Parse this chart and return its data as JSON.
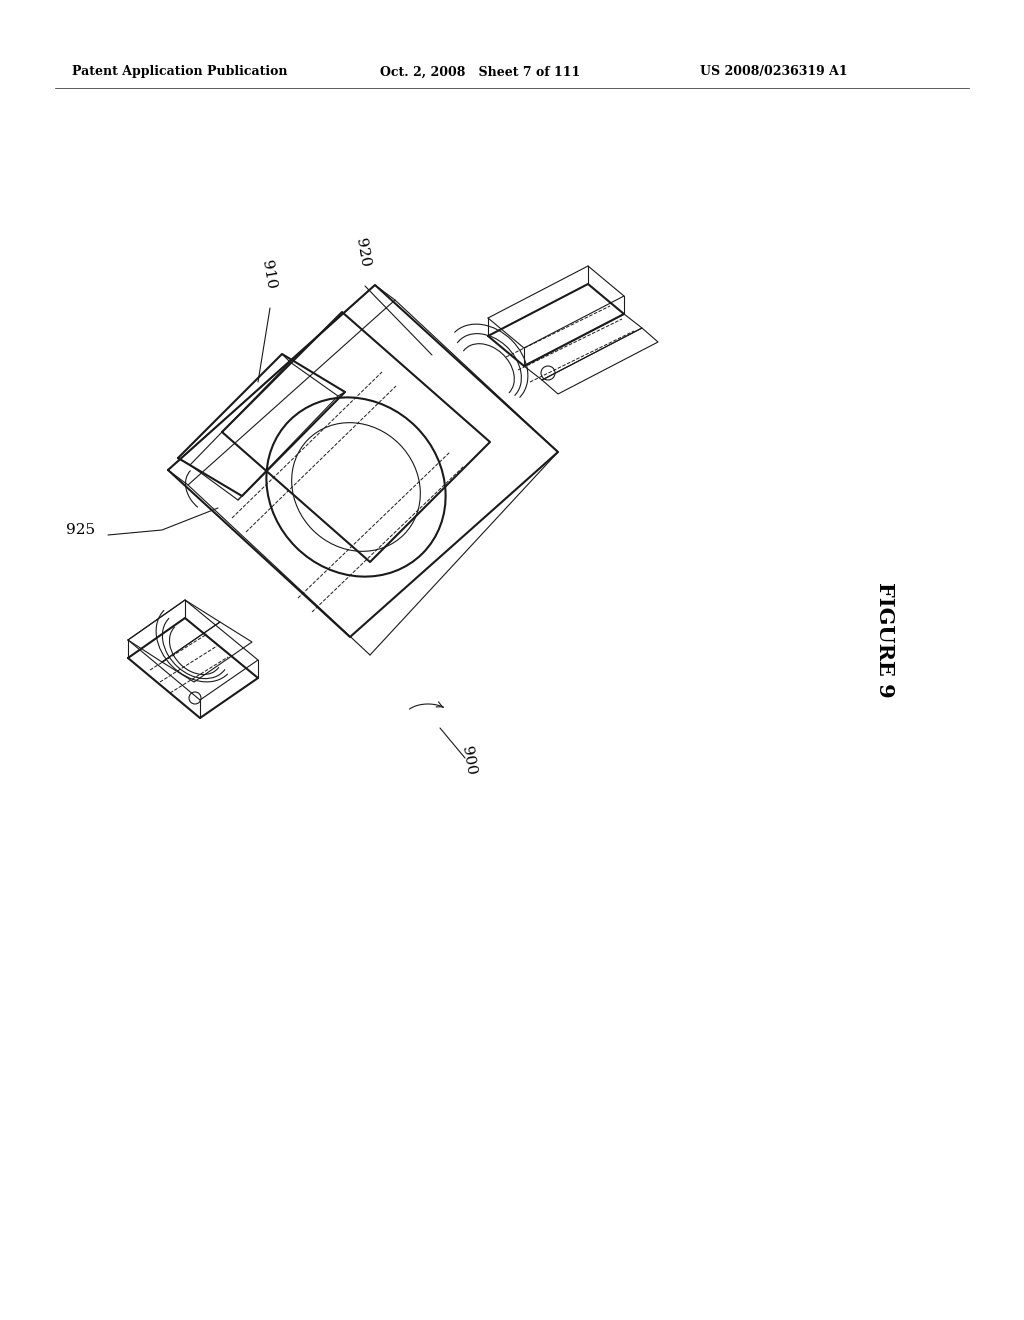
{
  "background_color": "#ffffff",
  "page_width": 10.24,
  "page_height": 13.2,
  "header_left": "Patent Application Publication",
  "header_mid": "Oct. 2, 2008   Sheet 7 of 111",
  "header_right": "US 2008/0236319 A1",
  "figure_label": "FIGURE 9",
  "ref_900": "900",
  "ref_910": "910",
  "ref_920": "920",
  "ref_925": "925",
  "line_color": "#1a1a1a",
  "text_color": "#000000",
  "lw_main": 1.5,
  "lw_thin": 0.8,
  "lw_dashed": 0.7,
  "font_header": 9,
  "font_ref": 11,
  "font_figure": 15
}
